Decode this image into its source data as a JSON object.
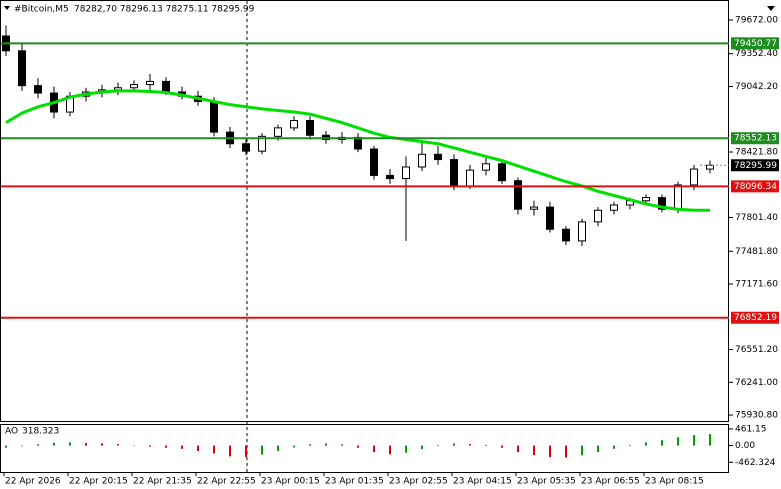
{
  "chart_data": {
    "type": "candlestick",
    "title": "#Bitcoin,M5",
    "quote": "78282,70 78296.13 78275.11 78295.99",
    "categories": [
      "22 Apr 2026",
      null,
      null,
      null,
      "22 Apr 20:15",
      null,
      null,
      null,
      "22 Apr 21:35",
      null,
      null,
      null,
      "22 Apr 22:55",
      null,
      null,
      null,
      "23 Apr 00:15",
      null,
      null,
      null,
      "23 Apr 01:35",
      null,
      null,
      null,
      "23 Apr 02:55",
      null,
      null,
      null,
      "23 Apr 04:15",
      null,
      null,
      null,
      "23 Apr 05:35",
      null,
      null,
      null,
      "23 Apr 06:55",
      null,
      null,
      null,
      "23 Apr 08:15",
      null,
      null,
      null,
      null
    ],
    "open": [
      79520,
      79380,
      79050,
      78980,
      78800,
      78950,
      78990,
      79010,
      79030,
      79060,
      79090,
      78990,
      78950,
      78900,
      78610,
      78500,
      78430,
      78570,
      78650,
      78720,
      78580,
      78540,
      78560,
      78450,
      78200,
      78170,
      78280,
      78400,
      78350,
      78100,
      78250,
      78310,
      78150,
      77880,
      77900,
      77690,
      77580,
      77760,
      77870,
      77920,
      77960,
      77990,
      77880,
      78110,
      78260
    ],
    "high": [
      79620,
      79450,
      79120,
      79040,
      78990,
      79030,
      79060,
      79080,
      79100,
      79160,
      79130,
      79040,
      79000,
      78940,
      78660,
      78560,
      78600,
      78680,
      78760,
      78760,
      78620,
      78610,
      78600,
      78480,
      78260,
      78380,
      78520,
      78480,
      78400,
      78300,
      78370,
      78340,
      78180,
      77960,
      77950,
      77720,
      77790,
      77900,
      77950,
      77990,
      78020,
      78020,
      78140,
      78300,
      78340
    ],
    "low": [
      79330,
      79000,
      78930,
      78740,
      78760,
      78900,
      78940,
      78960,
      78990,
      79010,
      78960,
      78920,
      78860,
      78570,
      78460,
      78390,
      78400,
      78530,
      78620,
      78540,
      78500,
      78500,
      78420,
      78160,
      78120,
      77580,
      78240,
      78300,
      78060,
      78070,
      78200,
      78120,
      77830,
      77820,
      77660,
      77540,
      77530,
      77720,
      77830,
      77880,
      77930,
      77850,
      77840,
      78060,
      78220
    ],
    "close": [
      79380,
      79050,
      78980,
      78800,
      78950,
      78990,
      79010,
      79030,
      79060,
      79090,
      78990,
      78950,
      78900,
      78610,
      78500,
      78430,
      78570,
      78650,
      78720,
      78580,
      78540,
      78560,
      78450,
      78200,
      78170,
      78280,
      78400,
      78350,
      78100,
      78250,
      78310,
      78150,
      77880,
      77900,
      77690,
      77580,
      77760,
      77870,
      77920,
      77960,
      77990,
      77880,
      78110,
      78260,
      78295.99
    ],
    "ma": {
      "color": "#00e000",
      "values": [
        78700,
        78790,
        78850,
        78890,
        78940,
        78970,
        78990,
        79000,
        79000,
        78995,
        78985,
        78960,
        78930,
        78900,
        78870,
        78850,
        78830,
        78815,
        78800,
        78780,
        78740,
        78700,
        78650,
        78600,
        78560,
        78540,
        78520,
        78500,
        78460,
        78420,
        78380,
        78340,
        78290,
        78240,
        78190,
        78140,
        78100,
        78050,
        78010,
        77970,
        77930,
        77900,
        77880,
        77870,
        77870
      ]
    },
    "ylim": [
      75865,
      79861
    ],
    "yticks": [
      {
        "value": 79672,
        "label": "79672.00"
      },
      {
        "value": 79352.4,
        "label": "79352.40"
      },
      {
        "value": 79042.2,
        "label": "79042.20"
      },
      {
        "value": 78421.8,
        "label": "78421.80"
      },
      {
        "value": 77801.4,
        "label": "77801.40"
      },
      {
        "value": 77481.8,
        "label": "77481.80"
      },
      {
        "value": 77171.6,
        "label": "77171.60"
      },
      {
        "value": 76551.2,
        "label": "76551.20"
      },
      {
        "value": 76241,
        "label": "76241.00"
      },
      {
        "value": 75930.8,
        "label": "75930.80"
      }
    ],
    "levels": [
      {
        "value": 79450.77,
        "color": "#1e8c1e"
      },
      {
        "value": 78552.13,
        "color": "#1e8c1e"
      },
      {
        "value": 78096.34,
        "color": "#e01010"
      },
      {
        "value": 76852.19,
        "color": "#e01010"
      }
    ],
    "indicator": {
      "name": "AO",
      "up_color": "#00a000",
      "down_color": "#e00000",
      "values": [
        -60,
        -20,
        40,
        80,
        90,
        70,
        60,
        40,
        10,
        -30,
        -60,
        -90,
        -150,
        -220,
        -300,
        -320,
        -250,
        -150,
        -50,
        40,
        60,
        30,
        -60,
        -180,
        -240,
        -200,
        -100,
        20,
        60,
        40,
        20,
        -60,
        -180,
        -260,
        -320,
        -330,
        -270,
        -180,
        -90,
        20,
        90,
        150,
        230,
        290,
        318.323
      ],
      "ylim": [
        -732,
        570
      ],
      "yticks": [
        461.15,
        {
          "value": 0,
          "label": "0.00"
        },
        -462.324
      ]
    }
  }
}
